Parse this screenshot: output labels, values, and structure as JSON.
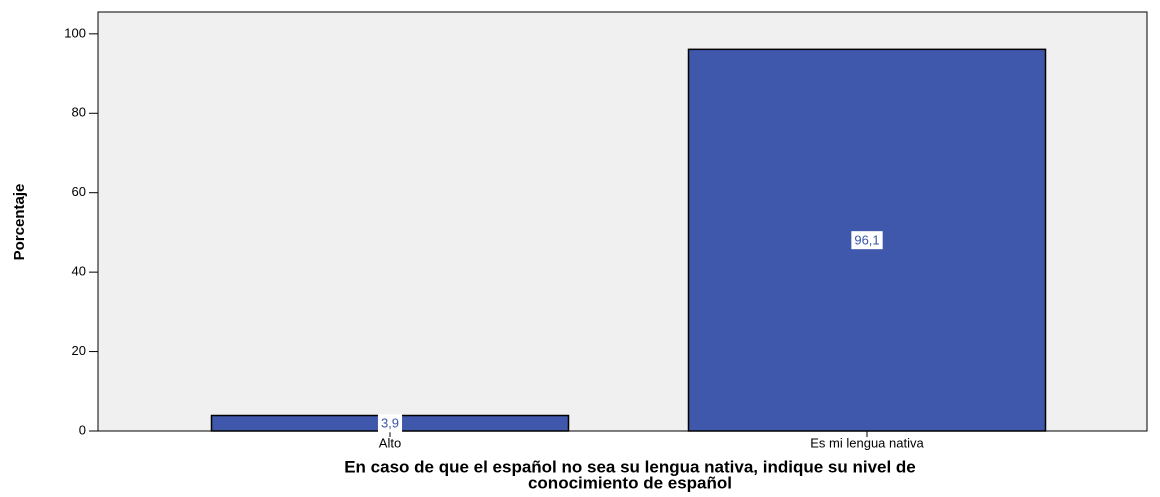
{
  "chart_data": {
    "type": "bar",
    "xlabel": [
      "En caso de que el español no sea su lengua nativa, indique su nivel de",
      "conocimiento de español"
    ],
    "ylabel": "Porcentaje",
    "categories": [
      "Alto",
      "Es mi lengua nativa"
    ],
    "values": [
      3.9,
      96.1
    ],
    "value_labels": [
      "3,9",
      "96,1"
    ],
    "color": "#3f58ab",
    "ylim": [
      0,
      105.5
    ],
    "yticks": [
      0,
      20,
      40,
      60,
      80,
      100
    ]
  }
}
